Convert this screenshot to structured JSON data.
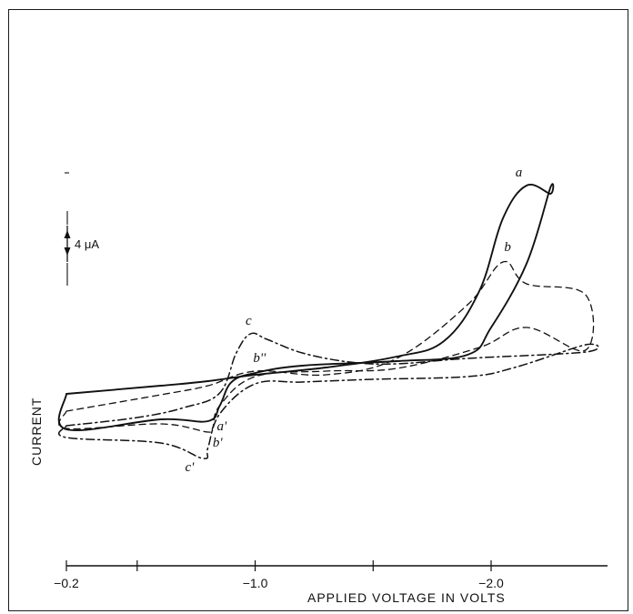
{
  "chart_data": {
    "type": "line",
    "xlabel": "APPLIED VOLTAGE IN VOLTS",
    "ylabel": "CURRENT",
    "xlim": [
      -0.2,
      -2.4
    ],
    "x_ticks": [
      -0.2,
      -0.5,
      -1.0,
      -1.5,
      -2.0
    ],
    "x_tick_labels": [
      {
        "value": -0.2,
        "text": "−0.2"
      },
      {
        "value": -1.0,
        "text": "−1.0"
      },
      {
        "value": -2.0,
        "text": "−2.0"
      }
    ],
    "scale_bar": {
      "label": "4 μA",
      "value": 4,
      "unit": "μA"
    },
    "annotations": [
      {
        "text": "a",
        "x": -2.08,
        "curve": "a"
      },
      {
        "text": "b",
        "x": -2.04,
        "curve": "b"
      },
      {
        "text": "c",
        "x": -0.99,
        "curve": "c"
      },
      {
        "text": "b''",
        "x": -1.03,
        "curve": "b"
      },
      {
        "text": "a'",
        "x": -0.83,
        "curve": "a"
      },
      {
        "text": "b'",
        "x": -0.82,
        "curve": "b"
      },
      {
        "text": "c'",
        "x": -0.78,
        "curve": "c"
      }
    ],
    "series": [
      {
        "id": "a",
        "style": "solid",
        "x": [
          -0.2,
          -0.6,
          -0.8,
          -1.0,
          -1.3,
          -1.6,
          -1.8,
          -1.95,
          -2.05,
          -2.15,
          -2.25,
          -2.25,
          -2.15,
          -2.0,
          -1.9,
          -1.6,
          -1.2,
          -1.0,
          -0.9,
          -0.85,
          -0.8,
          -0.6,
          -0.2,
          -0.2
        ],
        "y": [
          3.7,
          4.6,
          5.1,
          5.8,
          6.6,
          7.8,
          9.5,
          15.0,
          23.0,
          26.6,
          25.7,
          26.3,
          18.0,
          11.0,
          8.0,
          7.3,
          6.8,
          6.0,
          5.0,
          2.4,
          0.7,
          0.9,
          -0.2,
          3.7
        ]
      },
      {
        "id": "b",
        "style": "dashed",
        "x": [
          -0.2,
          -0.6,
          -0.8,
          -1.0,
          -1.3,
          -1.6,
          -1.9,
          -2.05,
          -2.15,
          -2.4,
          -2.4,
          -2.15,
          -1.95,
          -1.6,
          -1.3,
          -1.0,
          -0.85,
          -0.82,
          -0.8,
          -0.6,
          -0.2,
          -0.2
        ],
        "y": [
          1.8,
          3.6,
          4.6,
          6.2,
          5.8,
          7.6,
          13.5,
          18.2,
          15.8,
          14.6,
          8.5,
          11.0,
          8.8,
          6.5,
          6.2,
          5.6,
          2.4,
          0.0,
          -0.5,
          0.4,
          -0.1,
          1.8
        ]
      },
      {
        "id": "c",
        "style": "dashdot",
        "x": [
          -0.2,
          -0.5,
          -0.7,
          -0.85,
          -0.92,
          -0.98,
          -1.05,
          -1.2,
          -1.4,
          -1.6,
          -1.9,
          -2.4,
          -2.4,
          -2.1,
          -1.9,
          -1.5,
          -1.2,
          -1.0,
          -0.85,
          -0.8,
          -0.78,
          -0.6,
          -0.2,
          -0.2
        ],
        "y": [
          0.2,
          1.1,
          2.2,
          3.8,
          8.2,
          10.3,
          9.7,
          8.2,
          7.2,
          7.0,
          7.6,
          8.3,
          9.1,
          6.6,
          5.6,
          5.3,
          5.0,
          4.8,
          1.5,
          -2.2,
          -3.4,
          -1.7,
          -1.1,
          0.2
        ]
      }
    ]
  }
}
